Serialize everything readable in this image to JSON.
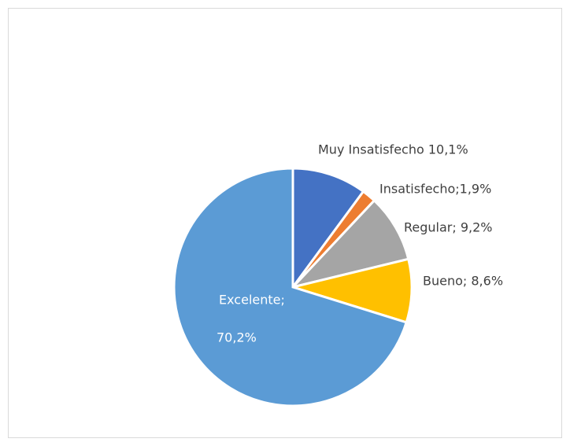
{
  "chart_data": {
    "type": "pie",
    "values": [
      10.1,
      1.9,
      9.2,
      8.6,
      70.2
    ],
    "value_labels": [
      "Muy Insatisfecho  10,1%",
      "Insatisfecho;1,9%",
      "Regular; 9,2%",
      "Bueno; 8,6%",
      [
        "Excelente;",
        "70,2%"
      ]
    ],
    "colors": [
      "#4472c4",
      "#ed7d31",
      "#a5a5a5",
      "#ffc000",
      "#5b9bd5"
    ]
  }
}
